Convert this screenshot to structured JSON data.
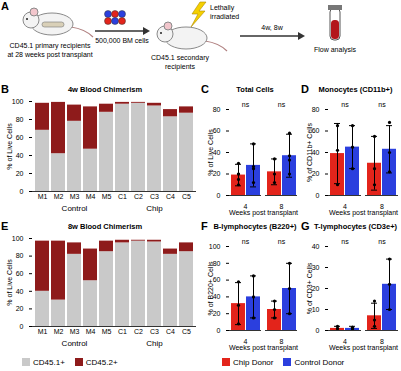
{
  "diagram": {
    "panel": "A",
    "primary": [
      "CD45.1 primary recipients",
      "at 28 weeks post transplant"
    ],
    "cells": [
      "500,000 BM cells"
    ],
    "irradiation": [
      "Lethally",
      "irradiated"
    ],
    "secondary": [
      "CD45.1 secondary",
      "recipients"
    ],
    "timepoints": [
      "4w, 8w"
    ],
    "analysis": [
      "Flow analysis"
    ]
  },
  "chart_data": [
    {
      "panel": "B",
      "type": "bar",
      "stacked": true,
      "title": "4w Blood Chimerism",
      "y_label": "% of Live Cells",
      "categories": [
        "M1",
        "M2",
        "M3",
        "M4",
        "M5",
        "C1",
        "C2",
        "C3",
        "C4",
        "C5"
      ],
      "groups": [
        {
          "label": "Control",
          "categories": [
            "M1",
            "M2",
            "M3",
            "M4",
            "M5"
          ]
        },
        {
          "label": "Chip",
          "categories": [
            "C1",
            "C2",
            "C3",
            "C4",
            "C5"
          ]
        }
      ],
      "series": [
        {
          "name": "CD45.1+",
          "color": "#c9c9c9",
          "values": [
            68,
            42,
            78,
            47,
            88,
            97,
            98,
            95,
            83,
            87
          ]
        },
        {
          "name": "CD45.2+",
          "color": "#8e1b1b",
          "values": [
            30,
            57,
            18,
            47,
            9,
            2,
            1,
            3,
            8,
            7
          ]
        }
      ],
      "ylim": [
        0,
        100
      ],
      "yticks": [
        0,
        20,
        40,
        60,
        80,
        100
      ],
      "grid": false
    },
    {
      "panel": "C",
      "type": "bar",
      "title": "Total Cells",
      "y_label": "% of Live Cells",
      "x_label": "Weeks post transplant",
      "x": [
        4,
        8
      ],
      "series": [
        {
          "name": "Chip Donor",
          "color": "#e3241b",
          "values": [
            19,
            22
          ],
          "errors": [
            10,
            12
          ],
          "points": [
            [
              10,
              15,
              30,
              20,
              20
            ],
            [
              12,
              34,
              20
            ]
          ]
        },
        {
          "name": "Control Donor",
          "color": "#2b3fde",
          "values": [
            28,
            37
          ],
          "errors": [
            20,
            20
          ],
          "points": [
            [
              12,
              48,
              25,
              27
            ],
            [
              20,
              58,
              33,
              37
            ]
          ]
        }
      ],
      "annotations": [
        "ns",
        "ns"
      ],
      "ylim": [
        0,
        80
      ],
      "yticks": [
        0,
        20,
        40,
        60,
        80
      ],
      "grid": false
    },
    {
      "panel": "D",
      "type": "bar",
      "title": "Monocytes (CD11b+)",
      "y_label": "% of CD11b+ Cells",
      "x_label": "Weeks post transplant",
      "x": [
        4,
        8
      ],
      "series": [
        {
          "name": "Chip Donor",
          "color": "#e3241b",
          "values": [
            39,
            30
          ],
          "errors": [
            28,
            25
          ],
          "points": [
            [
              10,
              65,
              42
            ],
            [
              10,
              55,
              25
            ]
          ]
        },
        {
          "name": "Control Donor",
          "color": "#2b3fde",
          "values": [
            45,
            43
          ],
          "errors": [
            20,
            22
          ],
          "points": [
            [
              25,
              65,
              45
            ],
            [
              22,
              68,
              40
            ]
          ]
        }
      ],
      "annotations": [
        "ns",
        "ns"
      ],
      "ylim": [
        0,
        80
      ],
      "yticks": [
        0,
        20,
        40,
        60,
        80
      ],
      "grid": false
    },
    {
      "panel": "E",
      "type": "bar",
      "stacked": true,
      "title": "8w Blood Chimerism",
      "y_label": "% of Live Cells",
      "categories": [
        "M1",
        "M2",
        "M3",
        "M4",
        "M5",
        "C1",
        "C2",
        "C3",
        "C4",
        "C5"
      ],
      "groups": [
        {
          "label": "Control",
          "categories": [
            "M1",
            "M2",
            "M3",
            "M4",
            "M5"
          ]
        },
        {
          "label": "Chip",
          "categories": [
            "C1",
            "C2",
            "C3",
            "C4",
            "C5"
          ]
        }
      ],
      "series": [
        {
          "name": "CD45.1+",
          "color": "#c9c9c9",
          "values": [
            40,
            30,
            82,
            52,
            85,
            95,
            97,
            96,
            82,
            85
          ]
        },
        {
          "name": "CD45.2+",
          "color": "#8e1b1b",
          "values": [
            57,
            67,
            13,
            36,
            12,
            3,
            1,
            2,
            6,
            10
          ]
        }
      ],
      "ylim": [
        0,
        100
      ],
      "yticks": [
        0,
        20,
        40,
        60,
        80,
        100
      ],
      "grid": false,
      "legend": "bottom"
    },
    {
      "panel": "F",
      "type": "bar",
      "title": "B-lymphocytes (B220+)",
      "y_label": "% of B220+ Cells",
      "x_label": "Weeks post transplant",
      "x": [
        4,
        8
      ],
      "series": [
        {
          "name": "Chip Donor",
          "color": "#e3241b",
          "values": [
            32,
            25
          ],
          "errors": [
            25,
            10
          ],
          "points": [
            [
              8,
              58,
              30
            ],
            [
              15,
              35,
              25
            ]
          ]
        },
        {
          "name": "Control Donor",
          "color": "#2b3fde",
          "values": [
            40,
            50
          ],
          "errors": [
            25,
            30
          ],
          "points": [
            [
              15,
              65,
              40
            ],
            [
              20,
              80,
              50
            ]
          ]
        }
      ],
      "annotations": [
        "ns",
        "ns"
      ],
      "ylim": [
        0,
        100
      ],
      "yticks": [
        0,
        20,
        40,
        60,
        80,
        100
      ],
      "grid": false,
      "legend": "bottom"
    },
    {
      "panel": "G",
      "type": "bar",
      "title": "T-lymphocytes (CD3e+)",
      "y_label": "% of CD3+ Cells",
      "x_label": "Weeks post transplant",
      "x": [
        4,
        8
      ],
      "series": [
        {
          "name": "Chip Donor",
          "color": "#e3241b",
          "values": [
            1,
            7
          ],
          "errors": [
            1,
            6
          ],
          "points": [
            [
              0,
              2,
              1
            ],
            [
              2,
              14,
              5
            ]
          ]
        },
        {
          "name": "Control Donor",
          "color": "#2b3fde",
          "values": [
            1,
            22
          ],
          "errors": [
            1,
            12
          ],
          "points": [
            [
              1,
              0.5,
              1.5
            ],
            [
              10,
              34,
              22
            ]
          ]
        }
      ],
      "annotations": [
        "ns",
        "ns"
      ],
      "ylim": [
        0,
        40
      ],
      "yticks": [
        0,
        10,
        20,
        30,
        40
      ],
      "grid": false
    }
  ]
}
